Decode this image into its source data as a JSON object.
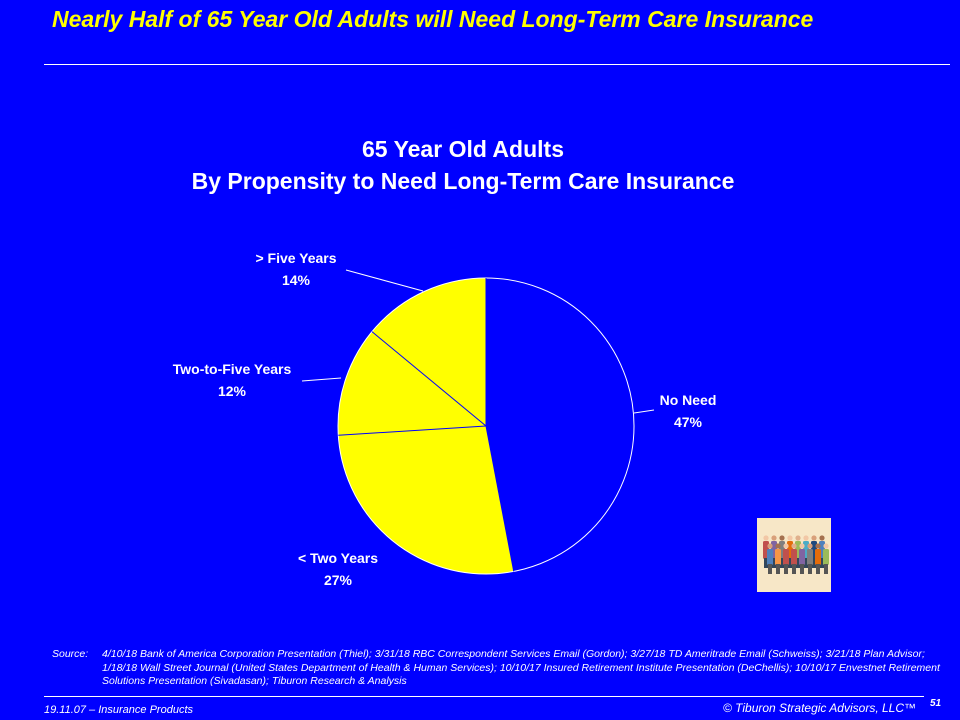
{
  "slide": {
    "title": "Nearly Half of 65 Year Old Adults will Need Long-Term Care Insurance",
    "source_label": "Source:",
    "source_text": "4/10/18 Bank of America Corporation Presentation (Thiel); 3/31/18 RBC Correspondent Services Email (Gordon); 3/27/18 TD Ameritrade Email (Schweiss); 3/21/18 Plan Advisor; 1/18/18 Wall Street Journal (United States Department of Health & Human Services); 10/10/17 Insured Retirement Institute Presentation (DeChellis); 10/10/17 Envestnet Retirement Solutions Presentation (Sivadasan); Tiburon Research & Analysis",
    "footer_left": "19.11.07 – Insurance Products",
    "footer_right": "© Tiburon Strategic Advisors, LLC™",
    "page_number": "51",
    "image_icon": "people-group-illustration"
  },
  "chart_data": {
    "type": "pie",
    "title_line1": "65 Year Old Adults",
    "title_line2": "By Propensity to Need Long-Term Care Insurance",
    "slices": [
      {
        "name": "No Need",
        "value": 47,
        "label": "47%",
        "color": "#0000ff"
      },
      {
        "name": "< Two Years",
        "value": 27,
        "label": "27%",
        "color": "#ffff00"
      },
      {
        "name": "Two-to-Five Years",
        "value": 12,
        "label": "12%",
        "color": "#ffff00"
      },
      {
        "name": "> Five Years",
        "value": 14,
        "label": "14%",
        "color": "#ffff00"
      }
    ],
    "slice_edge_color": "#ffffff",
    "separator_color": "#0000ff"
  }
}
